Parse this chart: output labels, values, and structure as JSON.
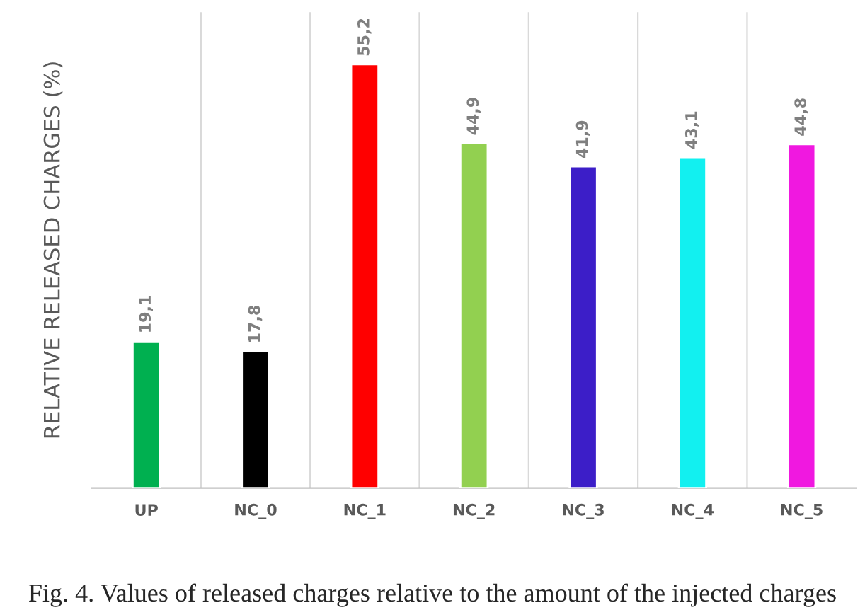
{
  "chart_data": {
    "type": "bar",
    "ylabel": "RELATIVE RELEASED CHARGES (%)",
    "categories": [
      "UP",
      "NC_0",
      "NC_1",
      "NC_2",
      "NC_3",
      "NC_4",
      "NC_5"
    ],
    "values": [
      19.1,
      17.8,
      55.2,
      44.9,
      41.9,
      43.1,
      44.8
    ],
    "value_labels": [
      "19,1",
      "17,8",
      "55,2",
      "44,9",
      "41,9",
      "43,1",
      "44,8"
    ],
    "colors": [
      "#00b050",
      "#000000",
      "#ff0000",
      "#92d050",
      "#3c1ec8",
      "#12f0f0",
      "#f018e0"
    ],
    "ylim": [
      0,
      62
    ],
    "tick_labels": "x",
    "grid": "x",
    "legend": false,
    "annotations": [
      "Fig. 4. Values of released charges relative to the amount of the injected charges"
    ]
  }
}
